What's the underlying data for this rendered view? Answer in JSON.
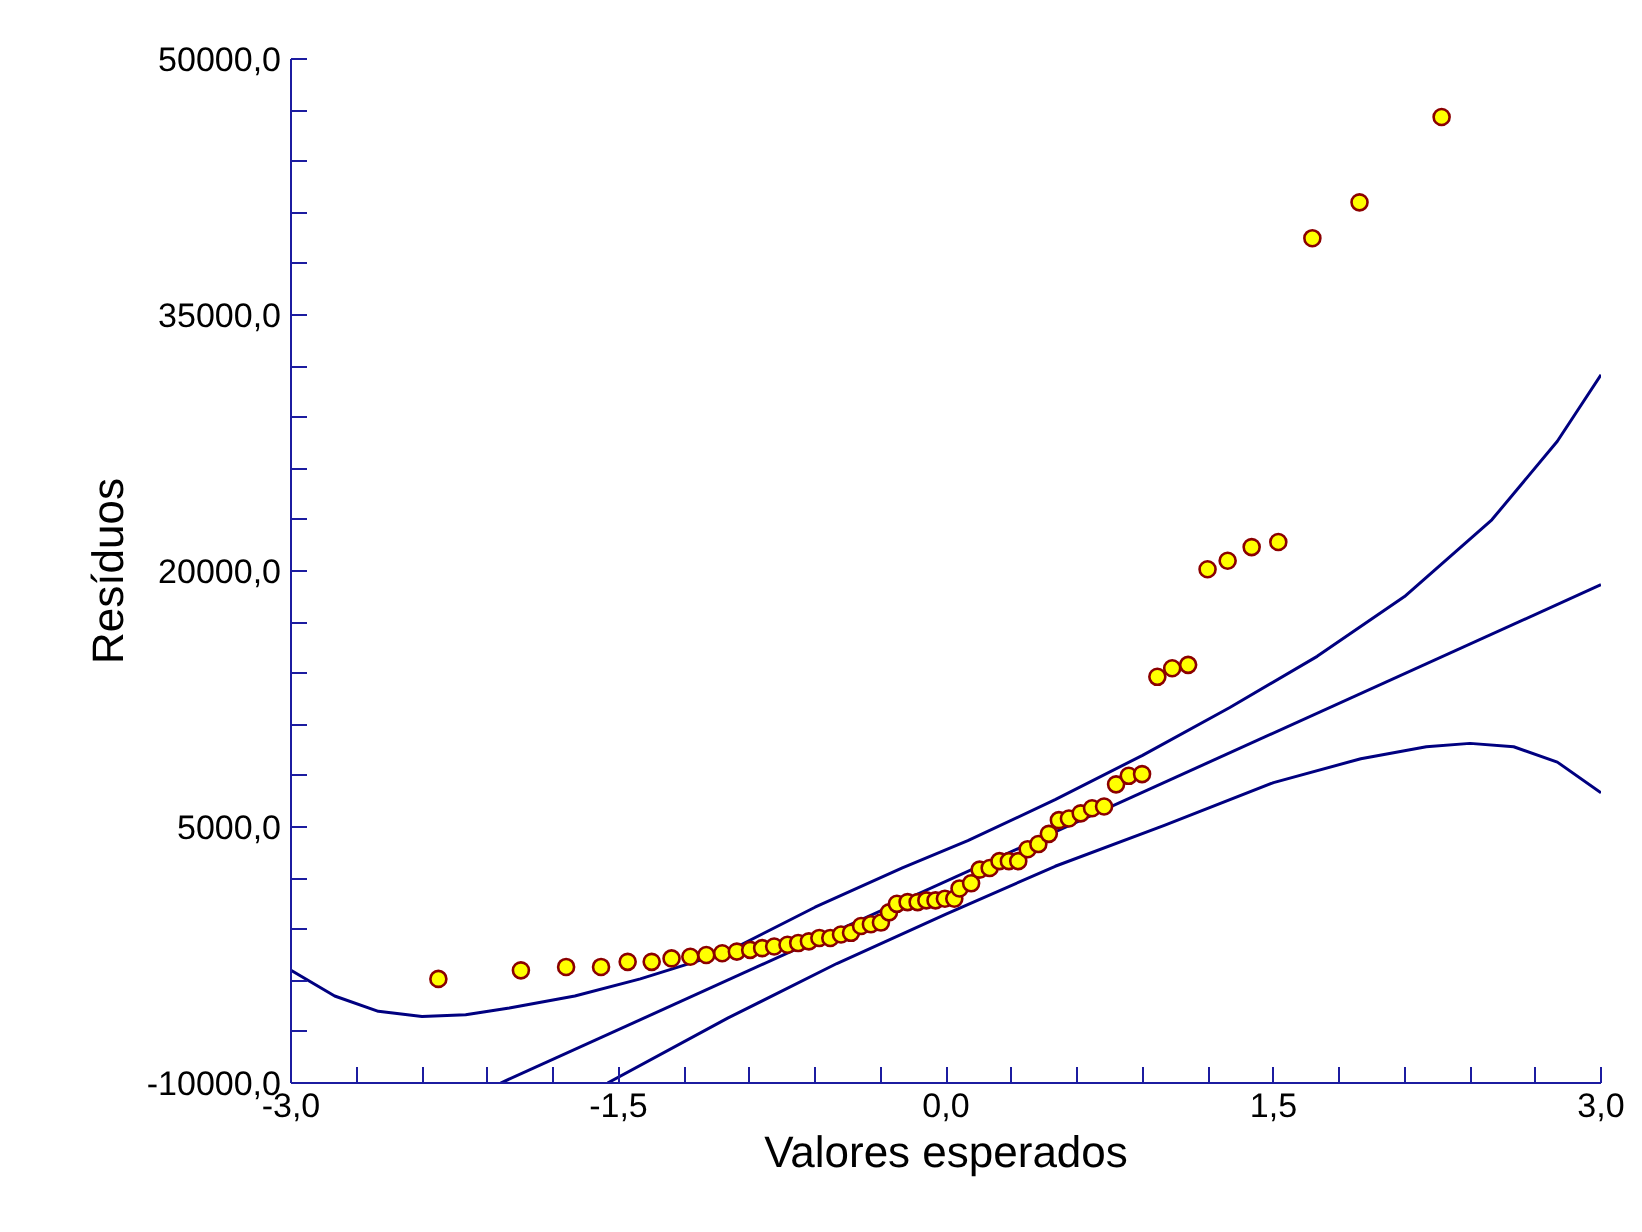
{
  "chart_data": {
    "type": "scatter",
    "xlabel": "Valores esperados",
    "ylabel": "Resíduos",
    "xlim": [
      -3.0,
      3.0
    ],
    "ylim": [
      -10000,
      50000
    ],
    "xticks": [
      {
        "value": -3.0,
        "label": "-3,0"
      },
      {
        "value": -2.7,
        "label": null
      },
      {
        "value": -2.4,
        "label": null
      },
      {
        "value": -2.1,
        "label": null
      },
      {
        "value": -1.8,
        "label": null
      },
      {
        "value": -1.5,
        "label": "-1,5"
      },
      {
        "value": -1.2,
        "label": null
      },
      {
        "value": -0.9,
        "label": null
      },
      {
        "value": -0.6,
        "label": null
      },
      {
        "value": -0.3,
        "label": null
      },
      {
        "value": 0.0,
        "label": "0,0"
      },
      {
        "value": 0.3,
        "label": null
      },
      {
        "value": 0.6,
        "label": null
      },
      {
        "value": 0.9,
        "label": null
      },
      {
        "value": 1.2,
        "label": null
      },
      {
        "value": 1.5,
        "label": "1,5"
      },
      {
        "value": 1.8,
        "label": null
      },
      {
        "value": 2.1,
        "label": null
      },
      {
        "value": 2.4,
        "label": null
      },
      {
        "value": 2.7,
        "label": null
      },
      {
        "value": 3.0,
        "label": "3,0"
      }
    ],
    "yticks": [
      {
        "value": -10000,
        "label": "-10000,0"
      },
      {
        "value": -7000,
        "label": null
      },
      {
        "value": -4000,
        "label": null
      },
      {
        "value": -1000,
        "label": null
      },
      {
        "value": 2000,
        "label": null
      },
      {
        "value": 5000,
        "label": "5000,0"
      },
      {
        "value": 8000,
        "label": null
      },
      {
        "value": 11000,
        "label": null
      },
      {
        "value": 14000,
        "label": null
      },
      {
        "value": 17000,
        "label": null
      },
      {
        "value": 20000,
        "label": "20000,0"
      },
      {
        "value": 23000,
        "label": null
      },
      {
        "value": 26000,
        "label": null
      },
      {
        "value": 29000,
        "label": null
      },
      {
        "value": 32000,
        "label": null
      },
      {
        "value": 35000,
        "label": "35000,0"
      },
      {
        "value": 38000,
        "label": null
      },
      {
        "value": 41000,
        "label": null
      },
      {
        "value": 44000,
        "label": null
      },
      {
        "value": 47000,
        "label": null
      },
      {
        "value": 50000,
        "label": "50000,0"
      }
    ],
    "marker": "circle",
    "series": [
      {
        "type": "line",
        "marker": "none",
        "color": "#000080",
        "x": [
          -3.0,
          -2.8,
          -2.6,
          -2.4,
          -2.2,
          -2.0,
          -1.7,
          -1.4,
          -1.0,
          -0.6,
          -0.2,
          0.1,
          0.5,
          0.9,
          1.3,
          1.7,
          2.1,
          2.5,
          2.8,
          3.0
        ],
        "values": [
          -3400,
          -4900,
          -5800,
          -6100,
          -6000,
          -5600,
          -4900,
          -3900,
          -2300,
          300,
          2600,
          4200,
          6600,
          9200,
          12000,
          15000,
          18500,
          23000,
          27600,
          31500
        ]
      },
      {
        "type": "line",
        "marker": "none",
        "color": "#000080",
        "x": [
          -2.04,
          3.0
        ],
        "values": [
          -10000,
          19200
        ]
      },
      {
        "type": "line",
        "marker": "none",
        "color": "#000080",
        "x": [
          -1.55,
          -1.0,
          -0.5,
          0.0,
          0.5,
          1.0,
          1.5,
          1.9,
          2.2,
          2.4,
          2.6,
          2.8,
          3.0
        ],
        "values": [
          -10000,
          -6200,
          -3000,
          -100,
          2700,
          5100,
          7600,
          9000,
          9700,
          9900,
          9700,
          8800,
          7000
        ]
      },
      {
        "color": "#ffff00",
        "x": [
          -2.325,
          -1.947,
          -1.74,
          -1.58,
          -1.458,
          -1.348,
          -1.257,
          -1.171,
          -1.098,
          -1.025,
          -0.958,
          -0.897,
          -0.842,
          -0.787,
          -0.726,
          -0.677,
          -0.628,
          -0.58,
          -0.53,
          -0.481,
          -0.435,
          -0.389,
          -0.344,
          -0.298,
          -0.261,
          -0.225,
          -0.176,
          -0.13,
          -0.09,
          -0.048,
          -0.005,
          0.038,
          0.062,
          0.115,
          0.154,
          0.2,
          0.245,
          0.288,
          0.331,
          0.374,
          0.423,
          0.471,
          0.517,
          0.563,
          0.617,
          0.669,
          0.724,
          0.779,
          0.837,
          0.898,
          0.968,
          1.036,
          1.109,
          1.198,
          1.29,
          1.4,
          1.522,
          1.678,
          1.894,
          2.27
        ],
        "values": [
          -3900,
          -3400,
          -3200,
          -3200,
          -2900,
          -2900,
          -2700,
          -2600,
          -2500,
          -2400,
          -2300,
          -2200,
          -2100,
          -2000,
          -1900,
          -1800,
          -1700,
          -1500,
          -1500,
          -1300,
          -1200,
          -800,
          -700,
          -600,
          0,
          500,
          600,
          600,
          700,
          700,
          800,
          800,
          1400,
          1700,
          2500,
          2600,
          3000,
          3000,
          3000,
          3700,
          4000,
          4600,
          5400,
          5500,
          5800,
          6100,
          6200,
          7500,
          8000,
          8100,
          13800,
          14300,
          14500,
          20100,
          20600,
          21400,
          21700,
          39500,
          41600,
          46600
        ]
      }
    ]
  }
}
